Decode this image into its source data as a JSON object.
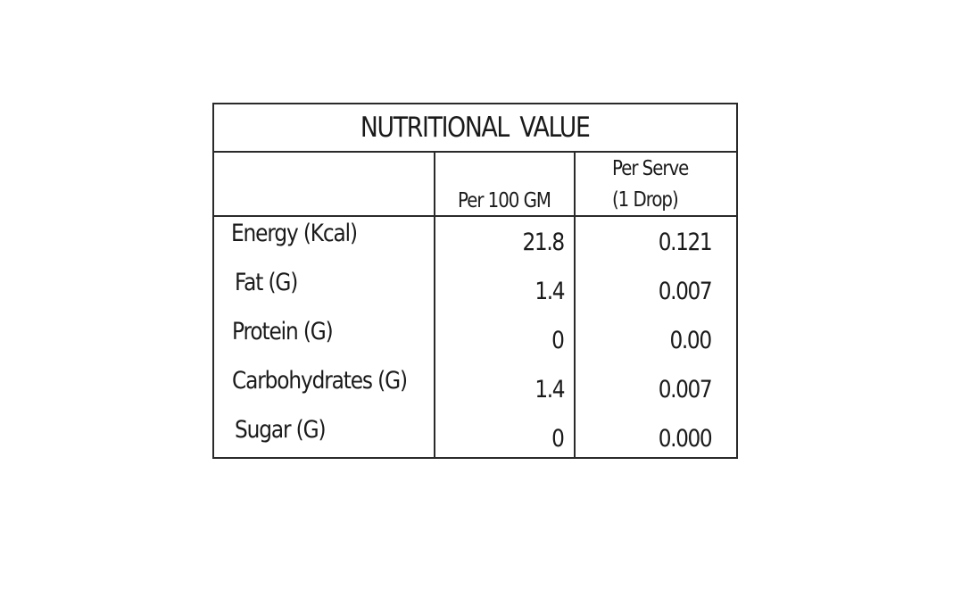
{
  "table": {
    "title": "NUTRITIONAL  VALUE",
    "headers": {
      "per_100": "Per 100 GM",
      "per_serve_line1": "Per Serve",
      "per_serve_line2": "(1 Drop)"
    },
    "rows": [
      {
        "label": "Energy (Kcal)",
        "per_100": "21.8",
        "per_serve": "0.121"
      },
      {
        "label": "Fat (G)",
        "per_100": "1.4",
        "per_serve": "0.007"
      },
      {
        "label": "Protein (G)",
        "per_100": "0",
        "per_serve": "0.00"
      },
      {
        "label": "Carbohydrates (G)",
        "per_100": "1.4",
        "per_serve": "0.007"
      },
      {
        "label": "Sugar (G)",
        "per_100": "0",
        "per_serve": "0.000"
      }
    ]
  }
}
